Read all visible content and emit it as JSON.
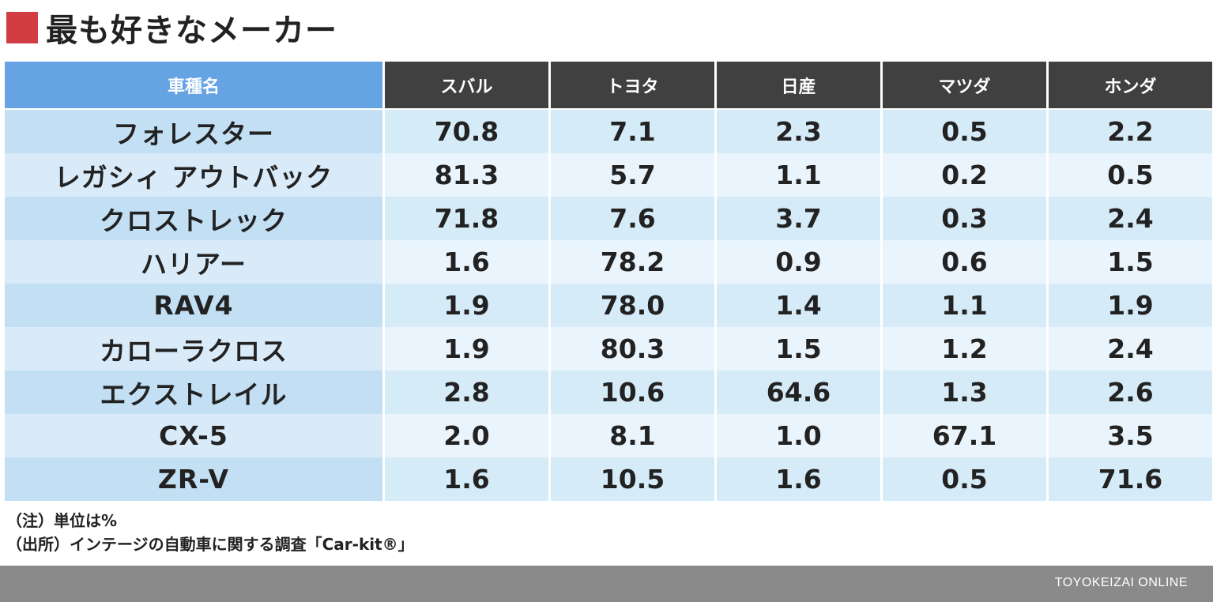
{
  "title": "最も好きなメーカー",
  "colors": {
    "title_mark": "#d23d44",
    "header_model": "#66a3e3",
    "header_maker": "#404040",
    "row_odd": "#d6ebf8",
    "row_even": "#e9f4fc",
    "footer": "#8a8a8a"
  },
  "chart_data": {
    "type": "table",
    "title": "最も好きなメーカー",
    "columns": [
      "車種名",
      "スバル",
      "トヨタ",
      "日産",
      "マツダ",
      "ホンダ"
    ],
    "rows": [
      {
        "model": "フォレスター",
        "values": [
          "70.8",
          "7.1",
          "2.3",
          "0.5",
          "2.2"
        ]
      },
      {
        "model": "レガシィ アウトバック",
        "values": [
          "81.3",
          "5.7",
          "1.1",
          "0.2",
          "0.5"
        ]
      },
      {
        "model": "クロストレック",
        "values": [
          "71.8",
          "7.6",
          "3.7",
          "0.3",
          "2.4"
        ]
      },
      {
        "model": "ハリアー",
        "values": [
          "1.6",
          "78.2",
          "0.9",
          "0.6",
          "1.5"
        ]
      },
      {
        "model": "RAV4",
        "values": [
          "1.9",
          "78.0",
          "1.4",
          "1.1",
          "1.9"
        ]
      },
      {
        "model": "カローラクロス",
        "values": [
          "1.9",
          "80.3",
          "1.5",
          "1.2",
          "2.4"
        ]
      },
      {
        "model": "エクストレイル",
        "values": [
          "2.8",
          "10.6",
          "64.6",
          "1.3",
          "2.6"
        ]
      },
      {
        "model": "CX-5",
        "values": [
          "2.0",
          "8.1",
          "1.0",
          "67.1",
          "3.5"
        ]
      },
      {
        "model": "ZR-V",
        "values": [
          "1.6",
          "10.5",
          "1.6",
          "0.5",
          "71.6"
        ]
      }
    ]
  },
  "notes": {
    "unit": "（注）単位は%",
    "source": "（出所）インテージの自動車に関する調査「Car-kit®」"
  },
  "footer": {
    "brand": "TOYOKEIZAI ONLINE"
  }
}
